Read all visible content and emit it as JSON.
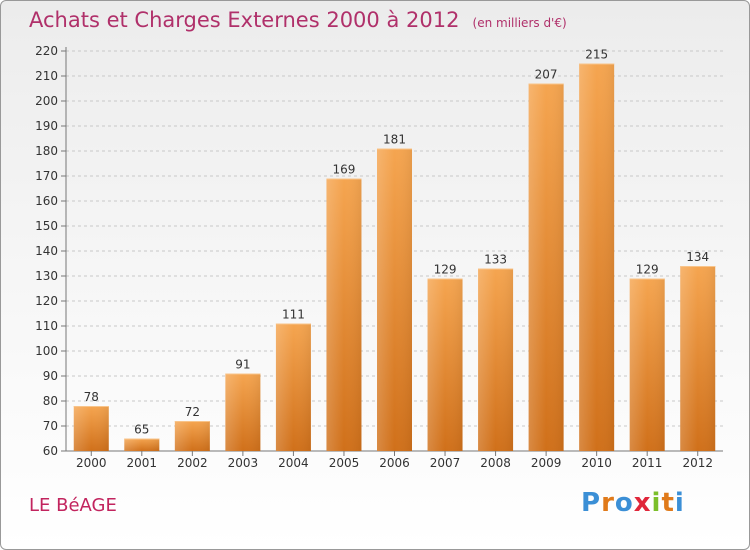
{
  "header": {
    "title": "Achats et Charges Externes 2000 à 2012",
    "subtitle": "(en milliers d'€)"
  },
  "footer": {
    "commune": "LE BéAGE",
    "logo": "Proxiti"
  },
  "colors": {
    "title": "#b0306a",
    "bar_top": "#f5a550",
    "bar_bottom": "#d0701a",
    "logo_letters": [
      "#3b8fd6",
      "#e07a1a",
      "#3b8fd6",
      "#e0263a",
      "#7bbf2a",
      "#e07a1a",
      "#3b8fd6"
    ]
  },
  "chart_data": {
    "type": "bar",
    "categories": [
      "2000",
      "2001",
      "2002",
      "2003",
      "2004",
      "2005",
      "2006",
      "2007",
      "2008",
      "2009",
      "2010",
      "2011",
      "2012"
    ],
    "values": [
      78,
      65,
      72,
      91,
      111,
      169,
      181,
      129,
      133,
      207,
      215,
      129,
      134
    ],
    "ylim": [
      60,
      220
    ],
    "yticks": [
      60,
      70,
      80,
      90,
      100,
      110,
      120,
      130,
      140,
      150,
      160,
      170,
      180,
      190,
      200,
      210,
      220
    ],
    "grid": "horizontal-dashed",
    "data_labels": true
  }
}
